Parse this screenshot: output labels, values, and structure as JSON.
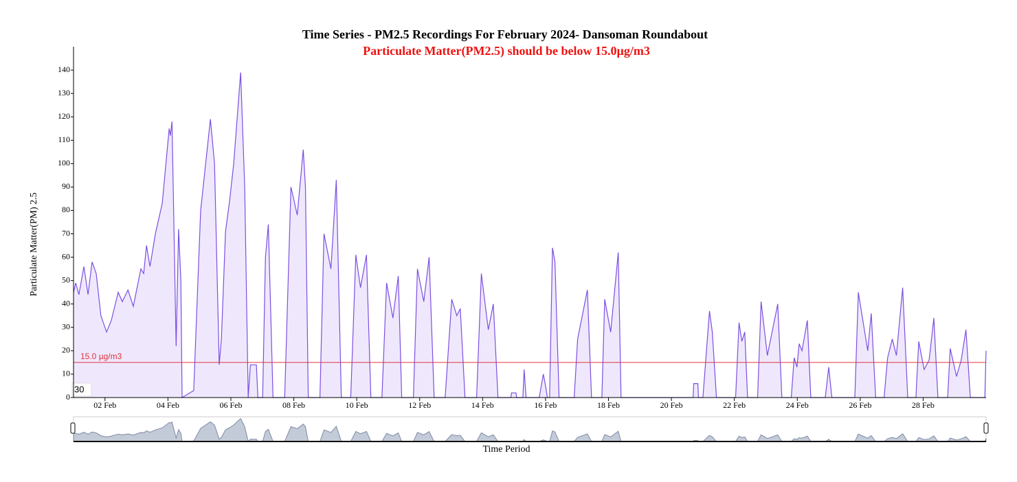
{
  "chart_data": {
    "type": "area",
    "title": "Time Series - PM2.5 Recordings For February 2024- Dansoman Roundabout",
    "subtitle": "Particulate Matter(PM2.5) should be below 15.0µg/m3",
    "xlabel": "Time Period",
    "ylabel": "Particulate Matter(PM) 2.5",
    "color": "#7b4fe0",
    "fill": "#efe8fd",
    "threshold": {
      "value": 15,
      "label": "15.0 µg/m3",
      "color": "#e0303a"
    },
    "cursor_label": "30",
    "xlim": [
      1,
      30
    ],
    "ylim": [
      0,
      150
    ],
    "xticks": [
      {
        "value": 2,
        "label": "02 Feb"
      },
      {
        "value": 4,
        "label": "04 Feb"
      },
      {
        "value": 6,
        "label": "06 Feb"
      },
      {
        "value": 8,
        "label": "08 Feb"
      },
      {
        "value": 10,
        "label": "10 Feb"
      },
      {
        "value": 12,
        "label": "12 Feb"
      },
      {
        "value": 14,
        "label": "14 Feb"
      },
      {
        "value": 16,
        "label": "16 Feb"
      },
      {
        "value": 18,
        "label": "18 Feb"
      },
      {
        "value": 20,
        "label": "20 Feb"
      },
      {
        "value": 22,
        "label": "22 Feb"
      },
      {
        "value": 24,
        "label": "24 Feb"
      },
      {
        "value": 26,
        "label": "26 Feb"
      },
      {
        "value": 28,
        "label": "28 Feb"
      }
    ],
    "yticks": [
      0,
      10,
      20,
      30,
      40,
      50,
      60,
      70,
      80,
      90,
      100,
      110,
      120,
      130,
      140
    ],
    "x": [
      1.0,
      1.07,
      1.17,
      1.33,
      1.46,
      1.59,
      1.72,
      1.87,
      2.05,
      2.2,
      2.42,
      2.55,
      2.73,
      2.9,
      3.14,
      3.23,
      3.32,
      3.43,
      3.6,
      3.82,
      4.04,
      4.08,
      4.13,
      4.26,
      4.34,
      4.41,
      4.45,
      4.82,
      5.04,
      5.35,
      5.48,
      5.63,
      5.7,
      5.83,
      5.96,
      6.09,
      6.31,
      6.44,
      6.55,
      6.62,
      6.81,
      6.86,
      7.01,
      7.1,
      7.19,
      7.34,
      7.71,
      7.91,
      8.11,
      8.3,
      8.37,
      8.46,
      8.83,
      8.96,
      9.18,
      9.35,
      9.51,
      9.81,
      9.97,
      10.12,
      10.31,
      10.45,
      10.8,
      10.95,
      11.15,
      11.32,
      11.43,
      11.8,
      11.93,
      12.13,
      12.3,
      12.46,
      12.81,
      13.02,
      13.18,
      13.29,
      13.44,
      13.81,
      13.96,
      14.18,
      14.34,
      14.49,
      14.9,
      14.92,
      15.06,
      15.08,
      15.28,
      15.32,
      15.38,
      15.8,
      15.93,
      16.0,
      16.06,
      16.13,
      16.22,
      16.3,
      16.43,
      16.91,
      17.02,
      17.33,
      17.46,
      17.79,
      17.88,
      18.07,
      18.31,
      18.4,
      20.69,
      20.71,
      20.84,
      20.86,
      21.0,
      21.21,
      21.3,
      21.43,
      22.04,
      22.15,
      22.24,
      22.33,
      22.42,
      22.74,
      22.85,
      23.05,
      23.38,
      23.51,
      23.81,
      23.9,
      23.99,
      24.06,
      24.15,
      24.32,
      24.43,
      24.89,
      25.0,
      25.1,
      25.83,
      25.94,
      26.24,
      26.35,
      26.49,
      26.76,
      26.87,
      27.02,
      27.15,
      27.35,
      27.51,
      27.77,
      27.86,
      28.03,
      28.19,
      28.34,
      28.47,
      28.78,
      28.86,
      29.06,
      29.21,
      29.36,
      29.5,
      29.96,
      30.0
    ],
    "values": [
      45,
      49,
      44,
      56,
      44,
      58,
      53,
      35,
      28,
      33,
      45,
      41,
      46,
      39,
      55,
      53,
      65,
      56,
      70,
      83,
      115,
      112,
      118,
      22,
      72,
      50,
      0,
      3,
      80,
      119,
      100,
      14,
      25,
      71,
      84,
      100,
      139,
      90,
      0,
      14,
      14,
      0,
      0,
      60,
      74,
      0,
      0,
      90,
      78,
      106,
      90,
      0,
      0,
      70,
      55,
      93,
      0,
      0,
      61,
      47,
      61,
      0,
      0,
      49,
      34,
      52,
      0,
      0,
      55,
      41,
      60,
      0,
      0,
      42,
      35,
      38,
      0,
      0,
      53,
      29,
      40,
      0,
      0,
      2,
      2,
      0,
      0,
      12,
      0,
      0,
      10,
      5,
      0,
      0,
      64,
      58,
      0,
      0,
      25,
      46,
      0,
      0,
      42,
      28,
      62,
      0,
      0,
      6,
      6,
      0,
      0,
      37,
      28,
      0,
      0,
      32,
      24,
      28,
      0,
      0,
      41,
      18,
      40,
      0,
      0,
      17,
      13,
      23,
      20,
      33,
      0,
      0,
      13,
      0,
      0,
      45,
      20,
      36,
      0,
      0,
      17,
      25,
      18,
      47,
      0,
      0,
      24,
      12,
      16,
      34,
      0,
      0,
      21,
      9,
      16,
      29,
      0,
      0,
      20
    ]
  }
}
